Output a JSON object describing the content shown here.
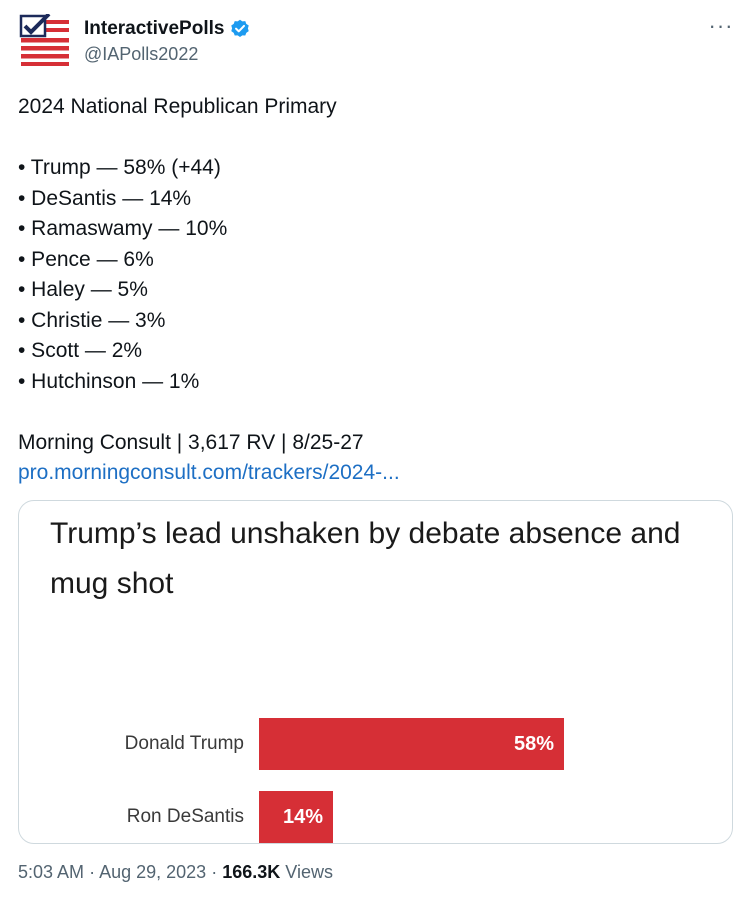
{
  "account": {
    "display_name": "InteractivePolls",
    "handle": "@IAPolls2022",
    "verified": true
  },
  "tweet": {
    "lines": [
      "2024 National Republican Primary",
      "",
      "• Trump — 58% (+44)",
      "• DeSantis — 14%",
      "• Ramaswamy — 10%",
      "• Pence — 6%",
      "• Haley — 5%",
      "• Christie — 3%",
      "• Scott — 2%",
      "• Hutchinson — 1%",
      "",
      "Morning Consult | 3,617 RV | 8/25-27"
    ],
    "link": "pro.morningconsult.com/trackers/2024-..."
  },
  "card": {
    "title": "Trump’s lead unshaken by debate absence and mug shot"
  },
  "chart_data": {
    "type": "bar",
    "orientation": "horizontal",
    "categories": [
      "Donald Trump",
      "Ron DeSantis"
    ],
    "values": [
      58,
      14
    ],
    "value_labels": [
      "58%",
      "14%"
    ],
    "bar_color": "#d62f36"
  },
  "footer": {
    "time": "5:03 AM",
    "separator": "·",
    "date": "Aug 29, 2023",
    "views_count": "166.3K",
    "views_label": "Views"
  },
  "colors": {
    "link": "#1d6fc4",
    "verified": "#1d9bf0",
    "muted": "#536471"
  }
}
